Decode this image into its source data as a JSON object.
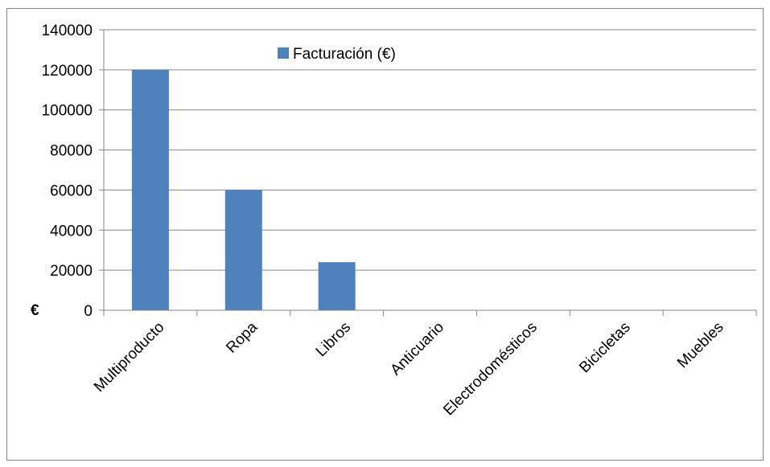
{
  "chart_data": {
    "type": "bar",
    "categories": [
      "Multiproducto",
      "Ropa",
      "Libros",
      "Anticuario",
      "Electrodomésticos",
      "Bicicletas",
      "Muebles"
    ],
    "series": [
      {
        "name": "Facturación (€)",
        "values": [
          120000,
          60000,
          24000,
          0,
          0,
          0,
          0
        ],
        "color": "#4f81bd"
      }
    ],
    "ylabel": "€",
    "xlabel": "",
    "ylim": [
      0,
      140000
    ],
    "yticks": [
      0,
      20000,
      40000,
      60000,
      80000,
      100000,
      120000,
      140000
    ],
    "grid": true,
    "legend": "top-center"
  }
}
